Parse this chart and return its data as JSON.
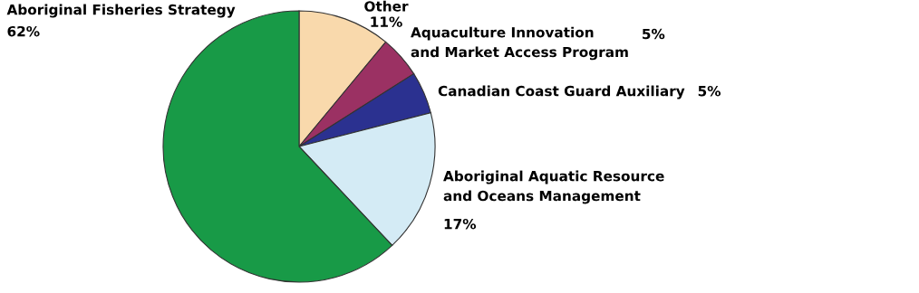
{
  "chart_data": {
    "type": "pie",
    "categories": [
      "Other",
      "Aquaculture Innovation\nand Market Access Program",
      "Canadian Coast Guard Auxiliary",
      "Aboriginal Aquatic Resource\nand Oceans Management",
      "Aboriginal Fisheries Strategy"
    ],
    "values": [
      11,
      5,
      5,
      17,
      62
    ],
    "colors": [
      "#f9d9ac",
      "#9b3163",
      "#2b3190",
      "#d4ebf5",
      "#189a47"
    ],
    "value_labels": [
      "11%",
      "5%",
      "5%",
      "17%",
      "62%"
    ]
  }
}
